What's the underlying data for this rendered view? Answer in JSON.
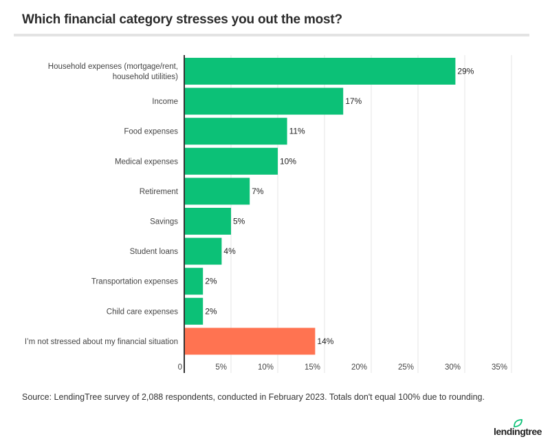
{
  "chart_data": {
    "type": "bar",
    "orientation": "horizontal",
    "title": "Which financial category stresses you out the most?",
    "categories": [
      "Household expenses (mortgage/rent,\nhousehold utilities)",
      "Income",
      "Food expenses",
      "Medical expenses",
      "Retirement",
      "Savings",
      "Student loans",
      "Transportation expenses",
      "Child care expenses",
      "I’m not stressed about my financial situation"
    ],
    "values": [
      29,
      17,
      11,
      10,
      7,
      5,
      4,
      2,
      2,
      14
    ],
    "data_labels": [
      "29%",
      "17%",
      "11%",
      "10%",
      "7%",
      "5%",
      "4%",
      "2%",
      "2%",
      "14%"
    ],
    "colors": [
      "#0cc177",
      "#0cc177",
      "#0cc177",
      "#0cc177",
      "#0cc177",
      "#0cc177",
      "#0cc177",
      "#0cc177",
      "#0cc177",
      "#ff7351"
    ],
    "xlim": [
      0,
      35
    ],
    "x_ticks": [
      0,
      5,
      10,
      15,
      20,
      25,
      30,
      35
    ],
    "x_tick_labels": [
      "0",
      "5%",
      "10%",
      "15%",
      "20%",
      "25%",
      "30%",
      "35%"
    ],
    "grid": true,
    "xlabel": "",
    "ylabel": ""
  },
  "source": "Source: LendingTree survey of 2,088 respondents, conducted in February 2023. Totals don't equal 100% due to rounding.",
  "logo": "lendingtree"
}
